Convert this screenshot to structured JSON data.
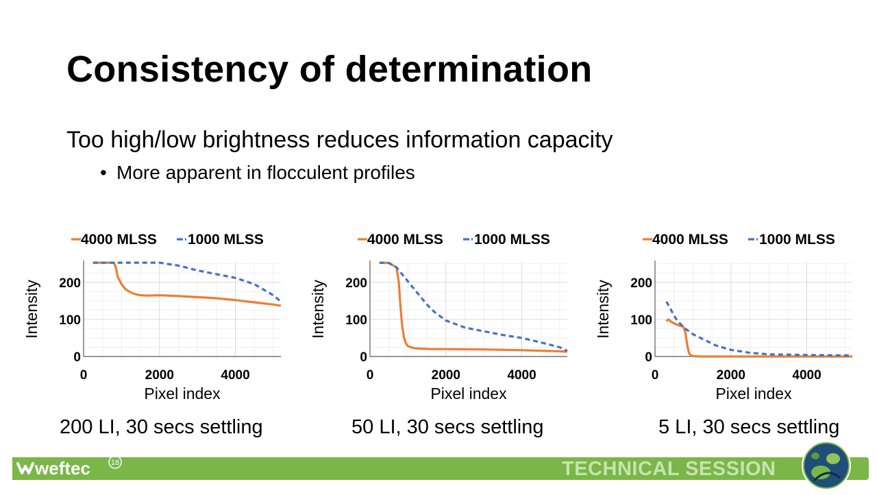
{
  "slide": {
    "title": "Consistency of determination",
    "subtitle": "Too high/low brightness reduces information capacity",
    "bullet": "More apparent in flocculent profiles"
  },
  "colors": {
    "orange": "#ed7d31",
    "blue": "#4472c4",
    "green": "#7ab648"
  },
  "footer": {
    "logo_text": "weftec",
    "logo_superscript": "18",
    "session": "TECHNICAL SESSION"
  },
  "chart_data": [
    {
      "type": "line",
      "caption": "200 LI, 30 secs settling",
      "xlabel": "Pixel index",
      "ylabel": "Intensity",
      "xlim": [
        0,
        5200
      ],
      "ylim": [
        0,
        255
      ],
      "xticks": [
        0,
        2000,
        4000
      ],
      "yticks": [
        0,
        100,
        200
      ],
      "grid": true,
      "legend": "top",
      "series": [
        {
          "name": "4000 MLSS",
          "style": "solid",
          "x": [
            250,
            800,
            850,
            900,
            1000,
            1100,
            1200,
            1300,
            1400,
            1500,
            1700,
            2000,
            2500,
            3000,
            3500,
            4000,
            4500,
            5000,
            5200
          ],
          "y": [
            253,
            253,
            240,
            215,
            195,
            182,
            175,
            170,
            167,
            165,
            164,
            165,
            163,
            160,
            157,
            152,
            146,
            140,
            137
          ]
        },
        {
          "name": "1000 MLSS",
          "style": "dashed",
          "x": [
            250,
            1000,
            2000,
            2500,
            3000,
            3500,
            4000,
            4500,
            5000,
            5200
          ],
          "y": [
            253,
            253,
            253,
            245,
            232,
            222,
            212,
            195,
            165,
            148
          ]
        }
      ]
    },
    {
      "type": "line",
      "caption": "50 LI, 30 secs settling",
      "xlabel": "Pixel index",
      "ylabel": "Intensity",
      "xlim": [
        0,
        5200
      ],
      "ylim": [
        0,
        255
      ],
      "xticks": [
        0,
        2000,
        4000
      ],
      "yticks": [
        0,
        100,
        200
      ],
      "grid": true,
      "legend": "top",
      "series": [
        {
          "name": "4000 MLSS",
          "style": "solid",
          "x": [
            250,
            500,
            700,
            760,
            800,
            850,
            900,
            950,
            1000,
            1100,
            1200,
            1400,
            1600,
            2000,
            3000,
            4000,
            5000,
            5200
          ],
          "y": [
            253,
            252,
            240,
            200,
            140,
            80,
            50,
            35,
            28,
            24,
            22,
            21,
            20,
            20,
            19,
            17,
            14,
            13
          ]
        },
        {
          "name": "1000 MLSS",
          "style": "dashed",
          "x": [
            250,
            500,
            700,
            900,
            1100,
            1300,
            1500,
            1700,
            2000,
            2500,
            3000,
            3500,
            4000,
            4500,
            5000,
            5200
          ],
          "y": [
            253,
            252,
            240,
            215,
            190,
            165,
            140,
            120,
            97,
            78,
            68,
            58,
            50,
            38,
            25,
            15
          ]
        }
      ]
    },
    {
      "type": "line",
      "caption": "5 LI, 30 secs settling",
      "xlabel": "Pixel index",
      "ylabel": "Intensity",
      "xlim": [
        0,
        5200
      ],
      "ylim": [
        0,
        255
      ],
      "xticks": [
        0,
        2000,
        4000
      ],
      "yticks": [
        0,
        100,
        200
      ],
      "grid": true,
      "legend": "top",
      "series": [
        {
          "name": "4000 MLSS",
          "style": "solid",
          "x": [
            300,
            350,
            450,
            600,
            750,
            800,
            850,
            900,
            950,
            1000,
            1200,
            2000,
            3000,
            4000,
            5000,
            5200
          ],
          "y": [
            95,
            100,
            92,
            85,
            80,
            65,
            30,
            8,
            3,
            1,
            0,
            0,
            0,
            0,
            0,
            0
          ]
        },
        {
          "name": "1000 MLSS",
          "style": "dashed",
          "x": [
            300,
            400,
            500,
            600,
            700,
            800,
            1000,
            1300,
            1600,
            2000,
            2500,
            3000,
            4000,
            5000,
            5200
          ],
          "y": [
            148,
            130,
            110,
            95,
            85,
            75,
            60,
            45,
            30,
            18,
            10,
            6,
            4,
            3,
            3
          ]
        }
      ]
    }
  ]
}
